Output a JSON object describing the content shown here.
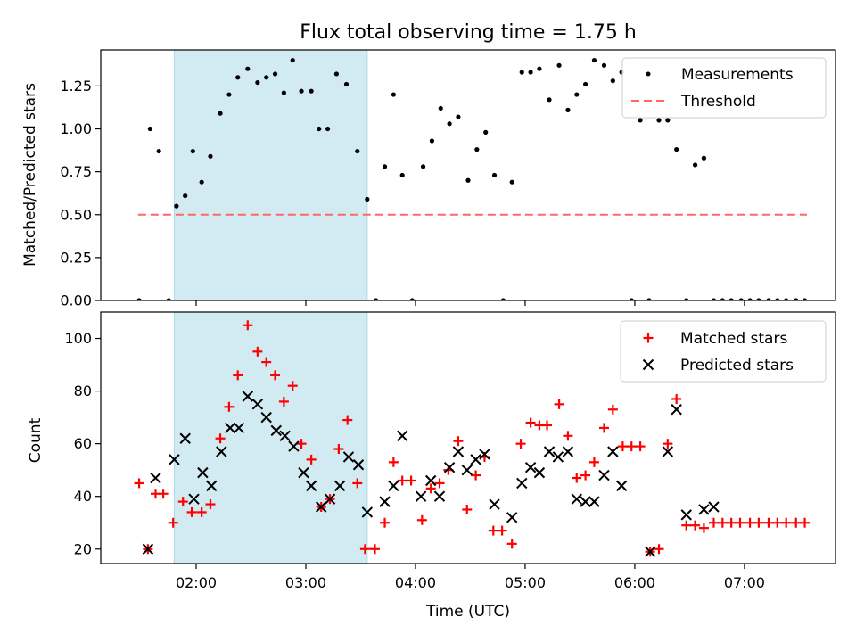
{
  "chart_data": {
    "title": "Flux total observing time = 1.75 h",
    "xlabel": "Time (UTC)",
    "x_ticks": [
      "02:00",
      "03:00",
      "04:00",
      "05:00",
      "06:00",
      "07:00"
    ],
    "x_tick_hours": [
      2,
      3,
      4,
      5,
      6,
      7
    ],
    "xlim": [
      1.13,
      7.83
    ],
    "shaded_interval": [
      1.8,
      3.56
    ],
    "colors": {
      "shade": "#add8e6",
      "measurements": "#000000",
      "threshold": "#ff6666",
      "matched": "#ff0000",
      "predicted": "#000000"
    },
    "panels": [
      {
        "type": "scatter",
        "ylabel": "Matched/Predicted stars",
        "ylim": [
          0,
          1.46
        ],
        "y_ticks": [
          "0.00",
          "0.25",
          "0.50",
          "0.75",
          "1.00",
          "1.25"
        ],
        "y_tick_values": [
          0,
          0.25,
          0.5,
          0.75,
          1.0,
          1.25
        ],
        "legend": {
          "position": "top-right",
          "entries": [
            "Measurements",
            "Threshold"
          ]
        },
        "threshold": {
          "value": 0.5,
          "x_range": [
            1.47,
            7.57
          ]
        },
        "series": [
          {
            "name": "Measurements",
            "x": [
              1.48,
              1.58,
              1.66,
              1.75,
              1.82,
              1.9,
              1.97,
              2.05,
              2.13,
              2.22,
              2.3,
              2.38,
              2.47,
              2.56,
              2.64,
              2.72,
              2.8,
              2.88,
              2.96,
              3.05,
              3.12,
              3.2,
              3.28,
              3.37,
              3.47,
              3.56,
              3.64,
              3.72,
              3.8,
              3.88,
              3.97,
              4.07,
              4.15,
              4.23,
              4.31,
              4.39,
              4.48,
              4.56,
              4.64,
              4.72,
              4.8,
              4.88,
              4.97,
              5.05,
              5.13,
              5.22,
              5.31,
              5.39,
              5.47,
              5.55,
              5.63,
              5.72,
              5.8,
              5.88,
              5.97,
              6.05,
              6.13,
              6.22,
              6.3,
              6.38,
              6.47,
              6.55,
              6.63,
              6.72,
              6.8,
              6.88,
              6.97,
              7.05,
              7.13,
              7.22,
              7.3,
              7.38,
              7.47,
              7.55
            ],
            "y": [
              0.0,
              1.0,
              0.87,
              0.0,
              0.55,
              0.61,
              0.87,
              0.69,
              0.84,
              1.09,
              1.2,
              1.3,
              1.35,
              1.27,
              1.3,
              1.32,
              1.21,
              1.4,
              1.22,
              1.22,
              1.0,
              1.0,
              1.32,
              1.26,
              0.87,
              0.59,
              0.0,
              0.78,
              1.2,
              0.73,
              0.0,
              0.78,
              0.93,
              1.12,
              1.03,
              1.07,
              0.7,
              0.88,
              0.98,
              0.73,
              0.0,
              0.69,
              1.33,
              1.33,
              1.35,
              1.17,
              1.37,
              1.11,
              1.2,
              1.26,
              1.4,
              1.37,
              1.28,
              1.33,
              0.0,
              1.05,
              0.0,
              1.05,
              1.05,
              0.88,
              0.0,
              0.79,
              0.83,
              0.0,
              0.0,
              0.0,
              0.0,
              0.0,
              0.0,
              0.0,
              0.0,
              0.0,
              0.0,
              0.0
            ]
          }
        ]
      },
      {
        "type": "scatter",
        "ylabel": "Count",
        "ylim": [
          14.5,
          110
        ],
        "y_ticks": [
          "20",
          "40",
          "60",
          "80",
          "100"
        ],
        "y_tick_values": [
          20,
          40,
          60,
          80,
          100
        ],
        "legend": {
          "position": "top-right",
          "entries": [
            "Matched stars",
            "Predicted stars"
          ]
        },
        "series": [
          {
            "name": "Matched stars",
            "x": [
              1.48,
              1.56,
              1.63,
              1.7,
              1.79,
              1.88,
              1.96,
              2.05,
              2.13,
              2.22,
              2.3,
              2.38,
              2.47,
              2.56,
              2.64,
              2.72,
              2.8,
              2.88,
              2.96,
              3.05,
              3.14,
              3.22,
              3.3,
              3.38,
              3.47,
              3.54,
              3.63,
              3.72,
              3.8,
              3.88,
              3.96,
              4.06,
              4.14,
              4.22,
              4.3,
              4.39,
              4.47,
              4.55,
              4.63,
              4.71,
              4.79,
              4.88,
              4.96,
              5.05,
              5.13,
              5.2,
              5.31,
              5.39,
              5.47,
              5.55,
              5.63,
              5.72,
              5.8,
              5.89,
              5.97,
              6.05,
              6.14,
              6.22,
              6.3,
              6.38,
              6.47,
              6.55,
              6.63,
              6.72,
              6.8,
              6.88,
              6.96,
              7.05,
              7.13,
              7.22,
              7.3,
              7.38,
              7.47,
              7.55
            ],
            "y": [
              45,
              20,
              41,
              41,
              30,
              38,
              34,
              34,
              37,
              62,
              74,
              86,
              105,
              95,
              91,
              86,
              76,
              82,
              60,
              54,
              36,
              39,
              58,
              69,
              45,
              20,
              20,
              30,
              53,
              46,
              46,
              31,
              43,
              45,
              50,
              61,
              35,
              48,
              55,
              27,
              27,
              22,
              60,
              68,
              67,
              67,
              75,
              63,
              47,
              48,
              53,
              66,
              73,
              59,
              59,
              59,
              19,
              20,
              60,
              77,
              29,
              29,
              28,
              30,
              30,
              30,
              30,
              30,
              30,
              30,
              30,
              30,
              30,
              30
            ]
          },
          {
            "name": "Predicted stars",
            "x": [
              1.56,
              1.63,
              1.8,
              1.9,
              1.98,
              2.06,
              2.14,
              2.23,
              2.31,
              2.39,
              2.47,
              2.56,
              2.64,
              2.73,
              2.81,
              2.89,
              2.98,
              3.05,
              3.14,
              3.22,
              3.31,
              3.39,
              3.48,
              3.56,
              3.72,
              3.8,
              3.88,
              4.05,
              4.14,
              4.22,
              4.31,
              4.39,
              4.47,
              4.55,
              4.63,
              4.72,
              4.88,
              4.97,
              5.05,
              5.13,
              5.22,
              5.3,
              5.39,
              5.47,
              5.55,
              5.63,
              5.72,
              5.8,
              5.88,
              6.14,
              6.3,
              6.38,
              6.47,
              6.63,
              6.72
            ],
            "y": [
              20,
              47,
              54,
              62,
              39,
              49,
              44,
              57,
              66,
              66,
              78,
              75,
              70,
              65,
              63,
              59,
              49,
              44,
              36,
              39,
              44,
              55,
              52,
              34,
              38,
              44,
              63,
              40,
              46,
              40,
              51,
              57,
              50,
              54,
              56,
              37,
              32,
              45,
              51,
              49,
              57,
              55,
              57,
              39,
              38,
              38,
              48,
              57,
              44,
              19,
              57,
              73,
              33,
              35,
              36
            ]
          }
        ]
      }
    ]
  }
}
